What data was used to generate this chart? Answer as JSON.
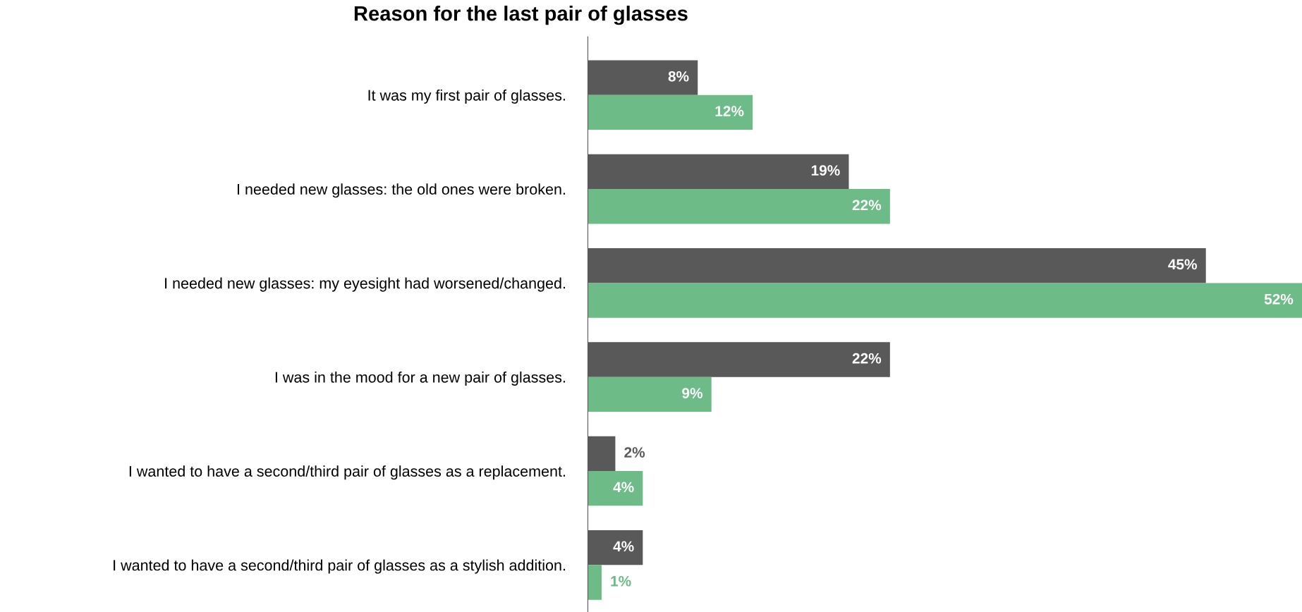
{
  "chart_data": {
    "type": "bar",
    "orientation": "horizontal",
    "title": "Reason for the last pair of glasses",
    "categories": [
      "It was my first pair of glasses.",
      "I needed new glasses: the old ones were broken.",
      "I needed new glasses: my eyesight had worsened/changed.",
      "I was in the mood for a new pair of glasses.",
      "I wanted to have a second/third pair of glasses as a replacement.",
      "I wanted to have a second/third pair of glasses as a stylish addition."
    ],
    "series": [
      {
        "color": "#595959",
        "values": [
          8,
          19,
          45,
          22,
          2,
          4
        ],
        "value_labels": [
          "8%",
          "19%",
          "45%",
          "22%",
          "2%",
          "4%"
        ]
      },
      {
        "color": "#6dbb87",
        "values": [
          12,
          22,
          52,
          9,
          4,
          1
        ],
        "value_labels": [
          "12%",
          "22%",
          "52%",
          "9%",
          "4%",
          "1%"
        ]
      }
    ],
    "grid": false,
    "legend": false
  }
}
